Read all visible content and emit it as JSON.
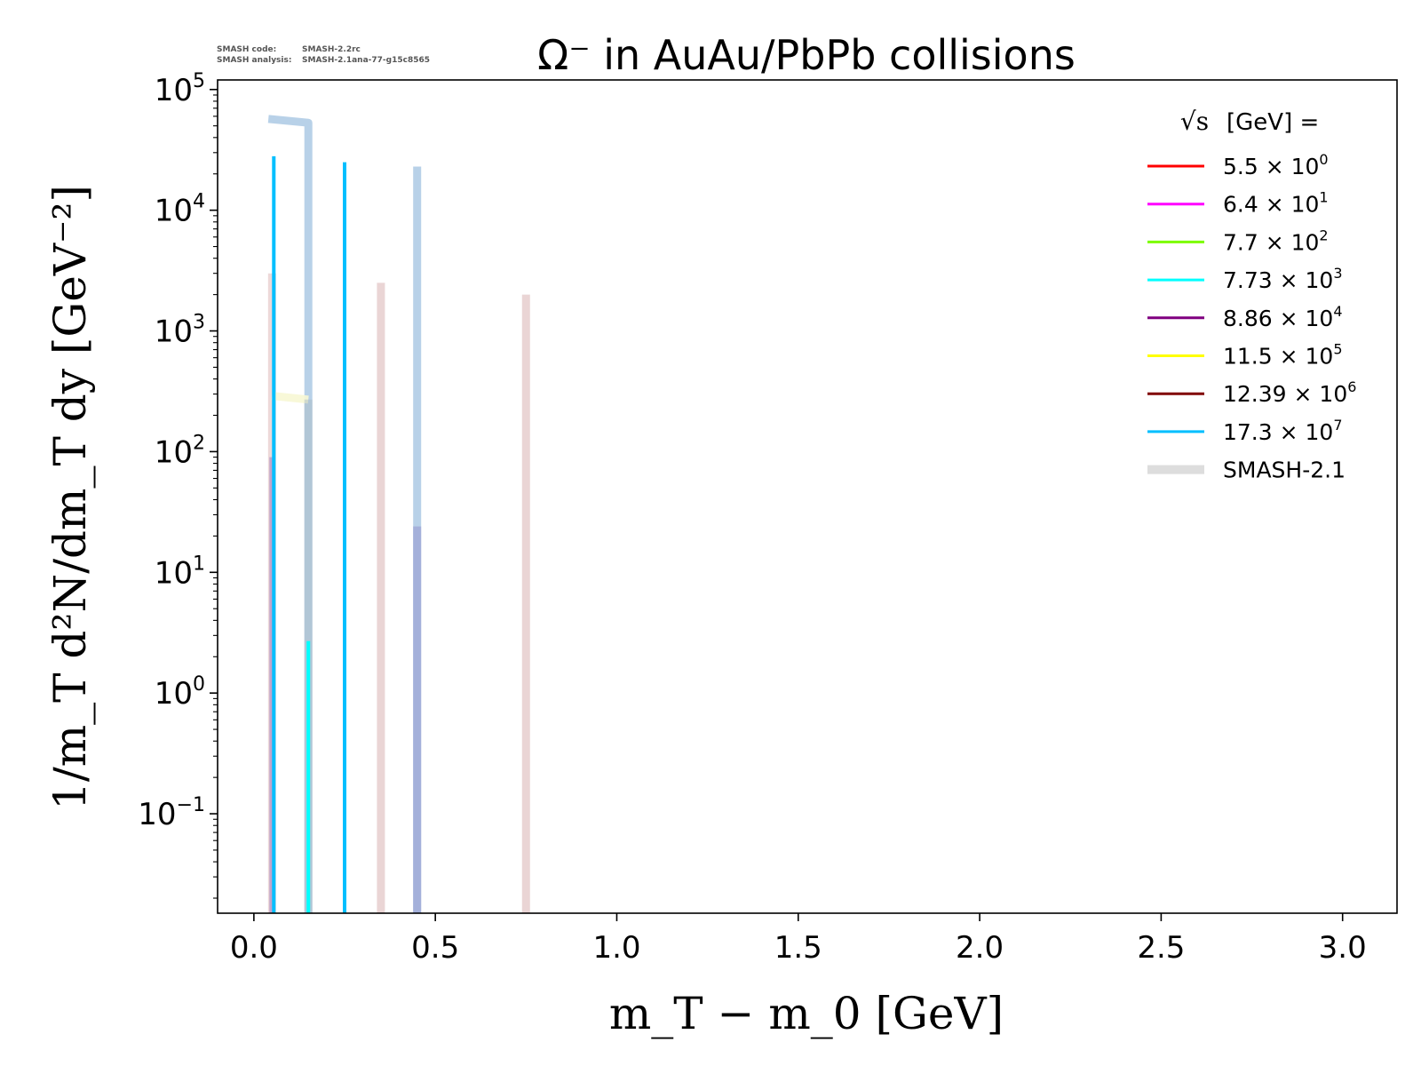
{
  "header": {
    "info_code_label": "SMASH code:",
    "info_code_value": "SMASH-2.2rc",
    "info_analysis_label": "SMASH analysis:",
    "info_analysis_value": "SMASH-2.1ana-77-g15c8565"
  },
  "chart_data": {
    "type": "line",
    "title": "Ω⁻ in AuAu/PbPb collisions",
    "xlabel": "m_T − m_0 [GeV]",
    "ylabel": "1/m_T d²N/dm_T dy [GeV⁻²]",
    "xlim": [
      -0.1,
      3.15
    ],
    "ylim": [
      0.015,
      120000
    ],
    "yscale": "log",
    "grid": false,
    "x_ticks": [
      {
        "value": 0.0,
        "label": "0.0"
      },
      {
        "value": 0.5,
        "label": "0.5"
      },
      {
        "value": 1.0,
        "label": "1.0"
      },
      {
        "value": 1.5,
        "label": "1.5"
      },
      {
        "value": 2.0,
        "label": "2.0"
      },
      {
        "value": 2.5,
        "label": "2.5"
      },
      {
        "value": 3.0,
        "label": "3.0"
      }
    ],
    "y_ticks": [
      {
        "value": 0.1,
        "base": "10",
        "exp": "−1"
      },
      {
        "value": 1,
        "base": "10",
        "exp": "0"
      },
      {
        "value": 10,
        "base": "10",
        "exp": "1"
      },
      {
        "value": 100,
        "base": "10",
        "exp": "2"
      },
      {
        "value": 1000,
        "base": "10",
        "exp": "3"
      },
      {
        "value": 10000,
        "base": "10",
        "exp": "4"
      },
      {
        "value": 100000,
        "base": "10",
        "exp": "5"
      }
    ],
    "legend": {
      "placement": "top-right",
      "title": "[GeV] =",
      "title_symbol": "√s",
      "entries": [
        {
          "mantissa": "5.5",
          "exp": "0",
          "color": "#ff0000"
        },
        {
          "mantissa": "6.4",
          "exp": "1",
          "color": "#ff00ff"
        },
        {
          "mantissa": "7.7",
          "exp": "2",
          "color": "#7cfc00"
        },
        {
          "mantissa": "7.73",
          "exp": "3",
          "color": "#00ffff"
        },
        {
          "mantissa": "8.86",
          "exp": "4",
          "color": "#800080"
        },
        {
          "mantissa": "11.5",
          "exp": "5",
          "color": "#ffff00"
        },
        {
          "mantissa": "12.39",
          "exp": "6",
          "color": "#800000"
        },
        {
          "mantissa": "17.3",
          "exp": "7",
          "color": "#00bfff"
        }
      ],
      "reference_label": "SMASH-2.1",
      "reference_color": "#dddddd",
      "times_symbol": "×",
      "times_base": "10"
    },
    "series": [
      {
        "color": "#b0cce6",
        "width": 9,
        "opacity": 0.9,
        "x": [
          0.04,
          0.15,
          0.15
        ],
        "y": [
          57000,
          53000,
          0.015
        ]
      },
      {
        "color": "#b0cce6",
        "width": 9,
        "opacity": 0.9,
        "x": [
          0.45,
          0.45
        ],
        "y": [
          23000,
          0.015
        ]
      },
      {
        "color": "#e8d0d0",
        "width": 9,
        "opacity": 0.9,
        "x": [
          0.35,
          0.35
        ],
        "y": [
          2500,
          0.015
        ]
      },
      {
        "color": "#e8d0d0",
        "width": 9,
        "opacity": 0.9,
        "x": [
          0.75,
          0.75
        ],
        "y": [
          2000,
          0.015
        ]
      },
      {
        "color": "#e8d0d0",
        "width": 9,
        "opacity": 0.8,
        "x": [
          0.05,
          0.05
        ],
        "y": [
          3000,
          0.015
        ]
      },
      {
        "color": "#f7f7d4",
        "width": 9,
        "opacity": 0.9,
        "x": [
          0.05,
          0.15
        ],
        "y": [
          290,
          270
        ]
      },
      {
        "color": "#a8b8c0",
        "width": 9,
        "opacity": 0.45,
        "x": [
          0.15,
          0.15
        ],
        "y": [
          270,
          0.015
        ]
      },
      {
        "color": "#9fa8d6",
        "width": 9,
        "opacity": 0.8,
        "x": [
          0.45,
          0.45
        ],
        "y": [
          24,
          0.015
        ]
      },
      {
        "color": "#a580c0",
        "width": 6,
        "opacity": 0.6,
        "x": [
          0.05,
          0.05
        ],
        "y": [
          90,
          0.015
        ]
      },
      {
        "color": "#00ffff",
        "width": 4,
        "opacity": 1,
        "x": [
          0.15,
          0.15
        ],
        "y": [
          2.7,
          0.015
        ]
      },
      {
        "color": "#00bfff",
        "width": 4,
        "opacity": 1,
        "x": [
          0.055,
          0.055
        ],
        "y": [
          28000,
          0.015
        ]
      },
      {
        "color": "#00bfff",
        "width": 4,
        "opacity": 1,
        "x": [
          0.25,
          0.25
        ],
        "y": [
          25000,
          0.015
        ]
      }
    ]
  }
}
